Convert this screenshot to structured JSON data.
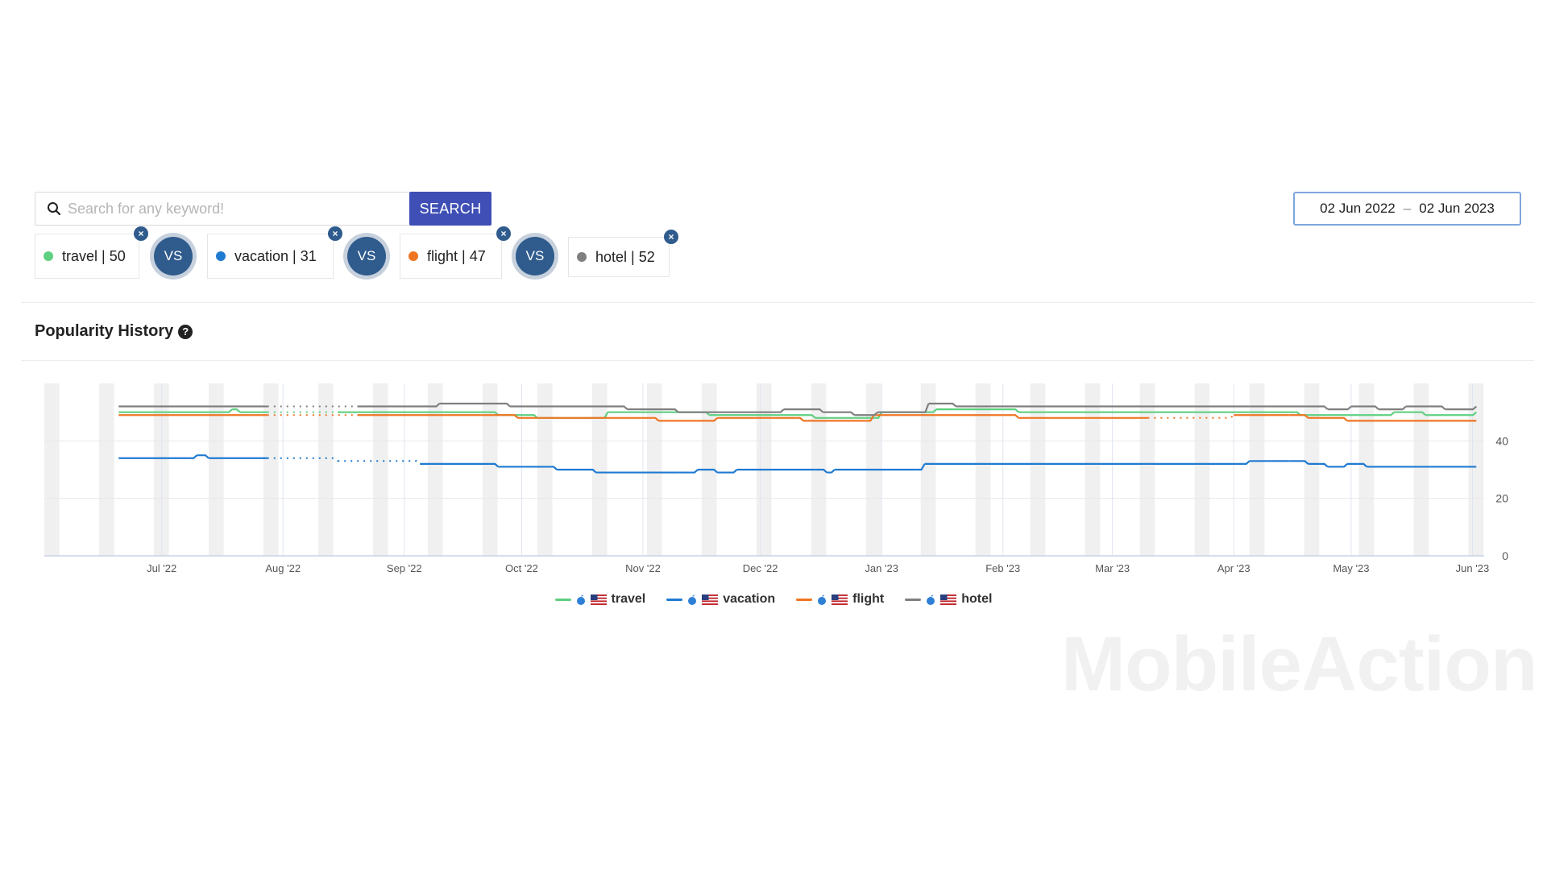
{
  "search": {
    "placeholder": "Search for any keyword!",
    "value": "",
    "button_label": "SEARCH"
  },
  "date_range": {
    "start": "02 Jun 2022",
    "separator": "–",
    "end": "02 Jun 2023"
  },
  "keywords": [
    {
      "label": "travel | 50",
      "color": "#5fcf80"
    },
    {
      "label": "vacation | 31",
      "color": "#1f7ad1"
    },
    {
      "label": "flight | 47",
      "color": "#f07522"
    },
    {
      "label": "hotel | 52",
      "color": "#7f7f7f"
    }
  ],
  "vs_label": "VS",
  "remove_glyph": "×",
  "section": {
    "title": "Popularity History",
    "help_glyph": "?"
  },
  "watermark": "MobileAction",
  "chart_data": {
    "type": "line",
    "x_type": "date",
    "xlim": [
      "2022-06-01",
      "2023-06-04"
    ],
    "ylim": [
      0,
      60
    ],
    "y_ticks": [
      0,
      20,
      40
    ],
    "y_axis_position": "right",
    "x_ticks": [
      {
        "date": "2022-07-01",
        "label": "Jul '22"
      },
      {
        "date": "2022-08-01",
        "label": "Aug '22"
      },
      {
        "date": "2022-09-01",
        "label": "Sep '22"
      },
      {
        "date": "2022-10-01",
        "label": "Oct '22"
      },
      {
        "date": "2022-11-01",
        "label": "Nov '22"
      },
      {
        "date": "2022-12-01",
        "label": "Dec '22"
      },
      {
        "date": "2023-01-01",
        "label": "Jan '23"
      },
      {
        "date": "2023-02-01",
        "label": "Feb '23"
      },
      {
        "date": "2023-03-01",
        "label": "Mar '23"
      },
      {
        "date": "2023-04-01",
        "label": "Apr '23"
      },
      {
        "date": "2023-05-01",
        "label": "May '23"
      },
      {
        "date": "2023-06-01",
        "label": "Jun '23"
      }
    ],
    "grid": true,
    "legend_position": "bottom",
    "series": [
      {
        "name": "travel",
        "color": "#5fcf80",
        "points": [
          [
            "2022-06-20",
            50
          ],
          [
            "2022-07-15",
            50
          ],
          [
            "2022-07-19",
            51
          ],
          [
            "2022-07-21",
            50
          ],
          [
            "2022-07-28",
            50
          ],
          [
            "2022-08-15",
            50
          ],
          [
            "2022-09-10",
            50
          ],
          [
            "2022-09-25",
            49
          ],
          [
            "2022-10-05",
            48
          ],
          [
            "2022-10-23",
            50
          ],
          [
            "2022-11-10",
            50
          ],
          [
            "2022-11-18",
            49
          ],
          [
            "2022-12-10",
            49
          ],
          [
            "2022-12-15",
            48
          ],
          [
            "2022-12-25",
            48
          ],
          [
            "2023-01-01",
            50
          ],
          [
            "2023-01-15",
            51
          ],
          [
            "2023-02-01",
            51
          ],
          [
            "2023-02-05",
            50
          ],
          [
            "2023-03-10",
            50
          ],
          [
            "2023-04-05",
            50
          ],
          [
            "2023-04-18",
            49
          ],
          [
            "2023-05-05",
            49
          ],
          [
            "2023-05-12",
            50
          ],
          [
            "2023-05-20",
            49
          ],
          [
            "2023-06-02",
            50
          ]
        ]
      },
      {
        "name": "vacation",
        "color": "#1f7ad1",
        "points": [
          [
            "2022-06-20",
            34
          ],
          [
            "2022-07-08",
            34
          ],
          [
            "2022-07-10",
            35
          ],
          [
            "2022-07-13",
            34
          ],
          [
            "2022-07-28",
            34
          ],
          [
            "2022-08-15",
            33
          ],
          [
            "2022-09-05",
            32
          ],
          [
            "2022-09-25",
            31
          ],
          [
            "2022-10-10",
            30
          ],
          [
            "2022-10-20",
            29
          ],
          [
            "2022-11-10",
            29
          ],
          [
            "2022-11-15",
            30
          ],
          [
            "2022-11-20",
            29
          ],
          [
            "2022-11-25",
            30
          ],
          [
            "2022-12-15",
            30
          ],
          [
            "2022-12-18",
            29
          ],
          [
            "2022-12-20",
            30
          ],
          [
            "2023-01-10",
            30
          ],
          [
            "2023-01-12",
            32
          ],
          [
            "2023-03-10",
            32
          ],
          [
            "2023-04-05",
            33
          ],
          [
            "2023-04-15",
            33
          ],
          [
            "2023-04-20",
            32
          ],
          [
            "2023-04-25",
            31
          ],
          [
            "2023-04-30",
            32
          ],
          [
            "2023-05-05",
            31
          ],
          [
            "2023-06-02",
            31
          ]
        ]
      },
      {
        "name": "flight",
        "color": "#f07522",
        "points": [
          [
            "2022-06-20",
            49
          ],
          [
            "2022-07-28",
            49
          ],
          [
            "2022-08-20",
            49
          ],
          [
            "2022-09-10",
            49
          ],
          [
            "2022-09-30",
            48
          ],
          [
            "2022-11-01",
            48
          ],
          [
            "2022-11-05",
            47
          ],
          [
            "2022-11-15",
            47
          ],
          [
            "2022-11-20",
            48
          ],
          [
            "2022-12-10",
            48
          ],
          [
            "2022-12-12",
            47
          ],
          [
            "2022-12-28",
            47
          ],
          [
            "2022-12-30",
            49
          ],
          [
            "2023-02-01",
            49
          ],
          [
            "2023-02-05",
            48
          ],
          [
            "2023-03-10",
            48
          ],
          [
            "2023-04-01",
            49
          ],
          [
            "2023-04-15",
            49
          ],
          [
            "2023-04-20",
            48
          ],
          [
            "2023-04-30",
            47
          ],
          [
            "2023-06-02",
            47
          ]
        ]
      },
      {
        "name": "hotel",
        "color": "#7f7f7f",
        "points": [
          [
            "2022-06-20",
            52
          ],
          [
            "2022-07-28",
            52
          ],
          [
            "2022-08-20",
            52
          ],
          [
            "2022-09-10",
            53
          ],
          [
            "2022-09-28",
            52
          ],
          [
            "2022-10-25",
            52
          ],
          [
            "2022-10-28",
            51
          ],
          [
            "2022-10-31",
            51
          ],
          [
            "2022-11-10",
            50
          ],
          [
            "2022-11-25",
            50
          ],
          [
            "2022-12-05",
            50
          ],
          [
            "2022-12-07",
            51
          ],
          [
            "2022-12-12",
            51
          ],
          [
            "2022-12-17",
            50
          ],
          [
            "2022-12-25",
            49
          ],
          [
            "2022-12-31",
            50
          ],
          [
            "2023-01-10",
            50
          ],
          [
            "2023-01-13",
            53
          ],
          [
            "2023-01-20",
            52
          ],
          [
            "2023-03-10",
            52
          ],
          [
            "2023-04-05",
            52
          ],
          [
            "2023-04-25",
            51
          ],
          [
            "2023-05-01",
            52
          ],
          [
            "2023-05-08",
            51
          ],
          [
            "2023-05-15",
            52
          ],
          [
            "2023-05-25",
            51
          ],
          [
            "2023-06-02",
            52
          ]
        ]
      }
    ],
    "gaps": [
      [
        "2022-07-28",
        "2022-09-05"
      ],
      [
        "2023-03-10",
        "2023-04-01"
      ]
    ]
  }
}
